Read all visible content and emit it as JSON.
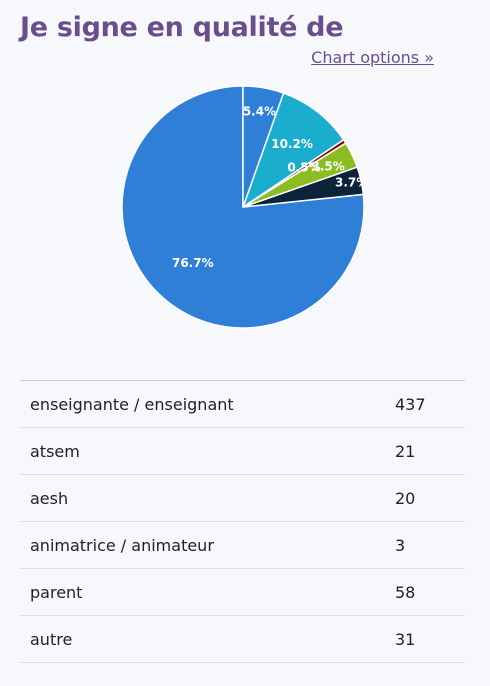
{
  "header": {
    "title": "Je signe en qualité de",
    "options_link": "Chart options »"
  },
  "colors": {
    "title": "#6a4e8c",
    "background": "#f6f8fc"
  },
  "chart_data": {
    "type": "pie",
    "title": "Je signe en qualité de",
    "categories": [
      "enseignante / enseignant",
      "atsem",
      "aesh",
      "animatrice / animateur",
      "parent",
      "autre"
    ],
    "values": [
      437,
      21,
      20,
      3,
      58,
      31
    ],
    "percent_labels": [
      "76.7%",
      "3.7%",
      "3.5%",
      "0.5%",
      "10.2%",
      "5.4%"
    ],
    "colors": [
      "#2f7ed8",
      "#0d233a",
      "#8bbc21",
      "#910000",
      "#1aadce",
      "#2f7ed8"
    ],
    "start_angle_deg": 0,
    "direction": "counterclockwise"
  },
  "table": {
    "rows": [
      {
        "label": "enseignante / enseignant",
        "value": "437"
      },
      {
        "label": "atsem",
        "value": "21"
      },
      {
        "label": "aesh",
        "value": "20"
      },
      {
        "label": "animatrice / animateur",
        "value": "3"
      },
      {
        "label": "parent",
        "value": "58"
      },
      {
        "label": "autre",
        "value": "31"
      }
    ]
  }
}
